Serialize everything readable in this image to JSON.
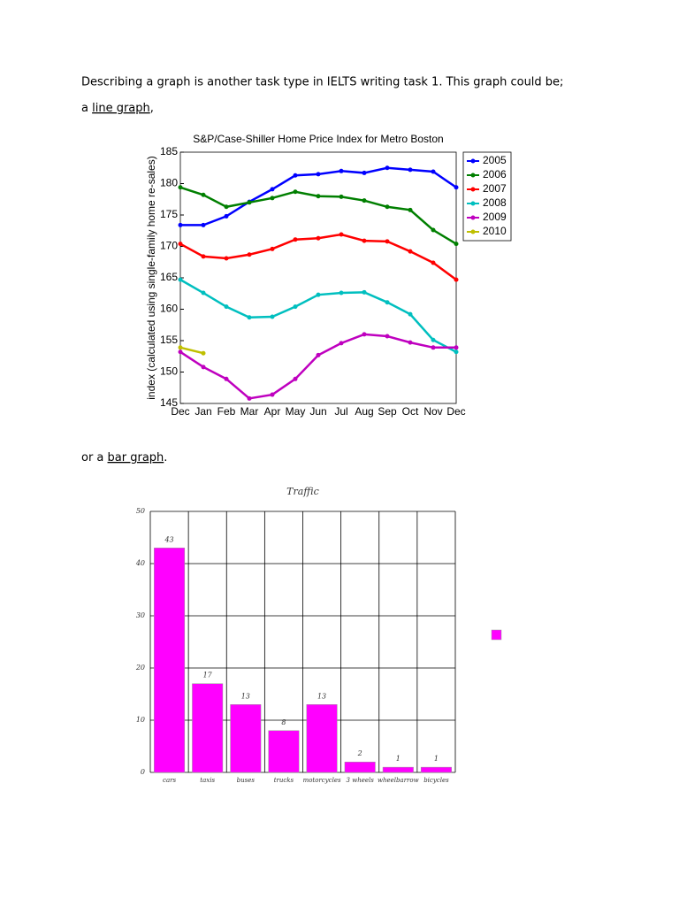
{
  "intro": "Describing a graph is another task type in IELTS writing task 1. This graph could be;",
  "line_caption": {
    "before": "a ",
    "link": "line graph",
    "after": ","
  },
  "bar_caption": {
    "before": "or a ",
    "link": "bar graph",
    "after": "."
  },
  "chart_data": [
    {
      "type": "line",
      "title": "S&P/Case-Shiller Home Price Index for Metro Boston",
      "y_label": "index (calculated using single-family home re-sales)",
      "categories": [
        "Dec",
        "Jan",
        "Feb",
        "Mar",
        "Apr",
        "May",
        "Jun",
        "Jul",
        "Aug",
        "Sep",
        "Oct",
        "Nov",
        "Dec"
      ],
      "series": [
        {
          "name": "2005",
          "color": "#0000ff",
          "values": [
            173.4,
            173.4,
            174.8,
            177.1,
            179.1,
            181.3,
            181.5,
            182.0,
            181.7,
            182.5,
            182.2,
            181.9,
            179.4
          ]
        },
        {
          "name": "2006",
          "color": "#007f00",
          "values": [
            179.4,
            178.2,
            176.3,
            177.0,
            177.7,
            178.7,
            178.0,
            177.9,
            177.3,
            176.3,
            175.8,
            172.6,
            170.4
          ]
        },
        {
          "name": "2007",
          "color": "#ff0000",
          "values": [
            170.4,
            168.4,
            168.1,
            168.7,
            169.6,
            171.1,
            171.3,
            171.9,
            170.9,
            170.8,
            169.2,
            167.4,
            164.7
          ]
        },
        {
          "name": "2008",
          "color": "#00bfbf",
          "values": [
            164.7,
            162.6,
            160.4,
            158.7,
            158.8,
            160.4,
            162.3,
            162.6,
            162.7,
            161.1,
            159.2,
            155.1,
            153.2
          ]
        },
        {
          "name": "2009",
          "color": "#bf00bf",
          "values": [
            153.2,
            150.8,
            148.9,
            145.8,
            146.4,
            148.9,
            152.7,
            154.6,
            156.0,
            155.7,
            154.7,
            153.9,
            153.9
          ]
        },
        {
          "name": "2010",
          "color": "#bfbf00",
          "values": [
            153.9,
            153.0,
            null,
            null,
            null,
            null,
            null,
            null,
            null,
            null,
            null,
            null,
            null
          ]
        }
      ],
      "ylim": [
        145,
        185
      ],
      "yticks": [
        145,
        150,
        155,
        160,
        165,
        170,
        175,
        180,
        185
      ],
      "grid": false,
      "legend": "upper right"
    },
    {
      "type": "bar",
      "title": "Traffic",
      "categories": [
        "cars",
        "taxis",
        "buses",
        "trucks",
        "motorcycles",
        "3 wheels",
        "wheelbarrow",
        "bicycles"
      ],
      "values": [
        43,
        17,
        13,
        8,
        13,
        2,
        1,
        1
      ],
      "color": "#ff00ff",
      "ylim": [
        0,
        50
      ],
      "yticks": [
        0,
        10,
        20,
        30,
        40,
        50
      ],
      "grid": true
    }
  ]
}
